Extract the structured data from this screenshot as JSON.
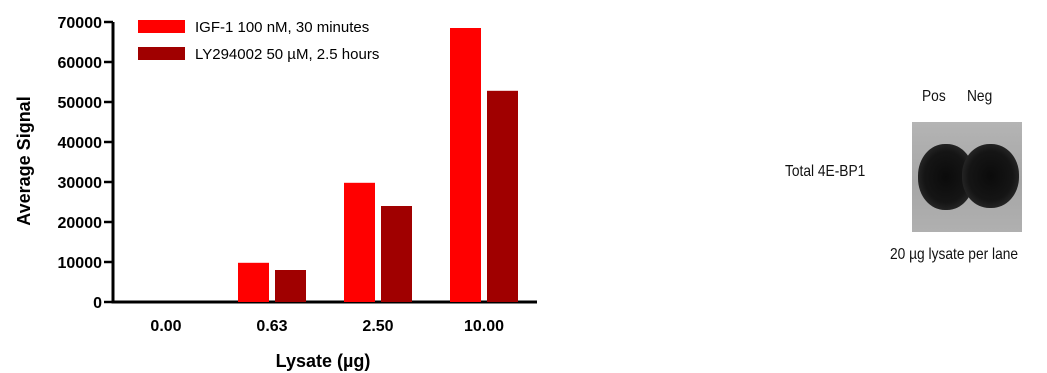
{
  "chart_data": {
    "type": "bar",
    "categories": [
      "0.00",
      "0.63",
      "2.50",
      "10.00"
    ],
    "series": [
      {
        "name": "IGF-1 100 nM, 30 minutes",
        "color": "#ff0000",
        "values": [
          0,
          9800,
          29800,
          68500
        ]
      },
      {
        "name": "LY294002 50 µM, 2.5 hours",
        "color": "#a00000",
        "values": [
          0,
          8000,
          24000,
          52800
        ]
      }
    ],
    "xlabel": "Lysate (µg)",
    "ylabel": "Average Signal",
    "ylim": [
      0,
      70000
    ],
    "yticks": [
      0,
      10000,
      20000,
      30000,
      40000,
      50000,
      60000,
      70000
    ],
    "legend_position": "top-left",
    "grid": false
  },
  "blot": {
    "lane_labels": [
      "Pos",
      "Neg"
    ],
    "row_label": "Total 4E-BP1",
    "caption": "20 µg lysate per lane"
  }
}
